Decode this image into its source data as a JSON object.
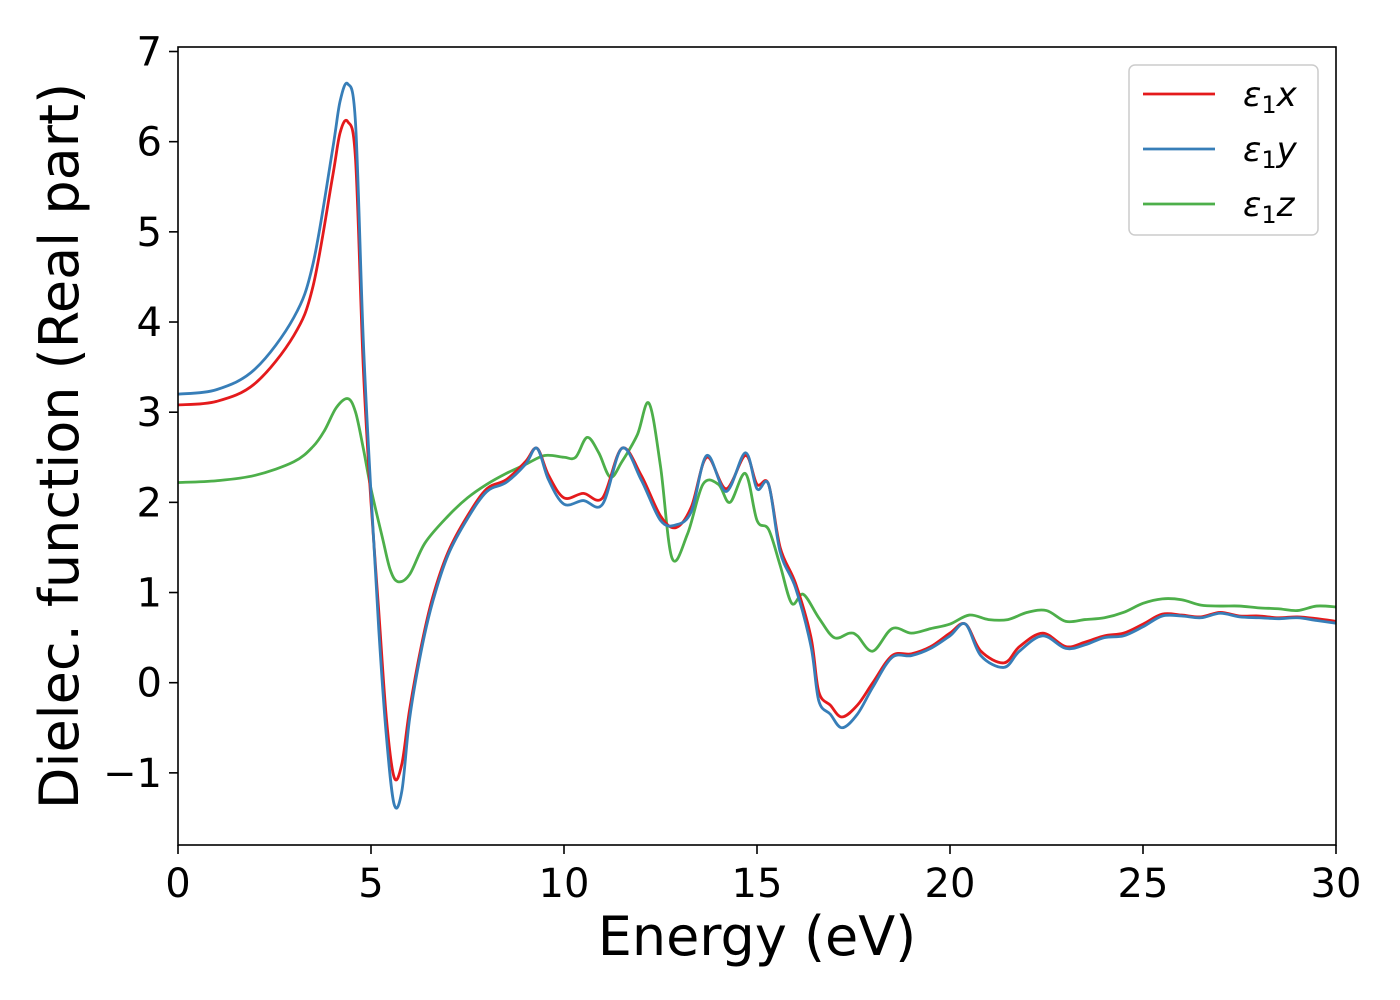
{
  "chart_data": {
    "type": "line",
    "title": "",
    "xlabel": "Energy (eV)",
    "ylabel": "Dielec. function (Real part)",
    "xlim": [
      0,
      30
    ],
    "ylim": [
      -1.8,
      7.05
    ],
    "xticks": [
      0,
      5,
      10,
      15,
      20,
      25,
      30
    ],
    "xtick_labels": [
      "0",
      "5",
      "10",
      "15",
      "20",
      "25",
      "30"
    ],
    "yticks": [
      -1,
      0,
      1,
      2,
      3,
      4,
      5,
      6,
      7
    ],
    "ytick_labels": [
      "−1",
      "0",
      "1",
      "2",
      "3",
      "4",
      "5",
      "6",
      "7"
    ],
    "grid": false,
    "legend_position": "top-right",
    "series": [
      {
        "name": "ε₁x",
        "name_base": "ε",
        "name_sub": "1",
        "name_suffix": "x",
        "color": "#e41a1c",
        "points": [
          [
            0,
            3.08
          ],
          [
            1,
            3.12
          ],
          [
            2,
            3.32
          ],
          [
            3,
            3.85
          ],
          [
            3.5,
            4.4
          ],
          [
            4,
            5.6
          ],
          [
            4.2,
            6.1
          ],
          [
            4.4,
            6.22
          ],
          [
            4.6,
            5.8
          ],
          [
            4.8,
            3.5
          ],
          [
            5.0,
            2.0
          ],
          [
            5.2,
            0.8
          ],
          [
            5.4,
            -0.4
          ],
          [
            5.6,
            -1.05
          ],
          [
            5.8,
            -0.9
          ],
          [
            6.0,
            -0.3
          ],
          [
            6.3,
            0.4
          ],
          [
            6.6,
            0.95
          ],
          [
            7,
            1.45
          ],
          [
            7.5,
            1.85
          ],
          [
            8,
            2.15
          ],
          [
            8.5,
            2.25
          ],
          [
            9,
            2.45
          ],
          [
            9.3,
            2.6
          ],
          [
            9.6,
            2.3
          ],
          [
            10,
            2.05
          ],
          [
            10.5,
            2.1
          ],
          [
            11,
            2.05
          ],
          [
            11.5,
            2.6
          ],
          [
            12,
            2.3
          ],
          [
            12.5,
            1.85
          ],
          [
            12.9,
            1.72
          ],
          [
            13.3,
            1.95
          ],
          [
            13.7,
            2.5
          ],
          [
            14.2,
            2.15
          ],
          [
            14.7,
            2.52
          ],
          [
            15,
            2.2
          ],
          [
            15.3,
            2.2
          ],
          [
            15.6,
            1.5
          ],
          [
            16,
            1.1
          ],
          [
            16.4,
            0.5
          ],
          [
            16.6,
            -0.1
          ],
          [
            16.9,
            -0.25
          ],
          [
            17.2,
            -0.38
          ],
          [
            17.6,
            -0.25
          ],
          [
            18,
            0.0
          ],
          [
            18.5,
            0.3
          ],
          [
            19,
            0.32
          ],
          [
            19.5,
            0.4
          ],
          [
            20,
            0.55
          ],
          [
            20.4,
            0.65
          ],
          [
            20.8,
            0.35
          ],
          [
            21.4,
            0.22
          ],
          [
            21.8,
            0.4
          ],
          [
            22.4,
            0.55
          ],
          [
            23,
            0.4
          ],
          [
            23.5,
            0.45
          ],
          [
            24,
            0.52
          ],
          [
            24.5,
            0.55
          ],
          [
            25,
            0.65
          ],
          [
            25.5,
            0.76
          ],
          [
            26,
            0.75
          ],
          [
            26.5,
            0.73
          ],
          [
            27,
            0.78
          ],
          [
            27.5,
            0.74
          ],
          [
            28,
            0.74
          ],
          [
            28.5,
            0.72
          ],
          [
            29,
            0.73
          ],
          [
            29.5,
            0.71
          ],
          [
            30,
            0.68
          ]
        ]
      },
      {
        "name": "ε₁y",
        "name_base": "ε",
        "name_sub": "1",
        "name_suffix": "y",
        "color": "#377eb8",
        "points": [
          [
            0,
            3.2
          ],
          [
            1,
            3.25
          ],
          [
            2,
            3.48
          ],
          [
            3,
            4.05
          ],
          [
            3.5,
            4.65
          ],
          [
            4,
            5.9
          ],
          [
            4.2,
            6.45
          ],
          [
            4.4,
            6.64
          ],
          [
            4.6,
            6.2
          ],
          [
            4.8,
            3.8
          ],
          [
            5.0,
            2.1
          ],
          [
            5.2,
            0.6
          ],
          [
            5.4,
            -0.6
          ],
          [
            5.6,
            -1.35
          ],
          [
            5.8,
            -1.2
          ],
          [
            6.0,
            -0.4
          ],
          [
            6.3,
            0.35
          ],
          [
            6.6,
            0.9
          ],
          [
            7,
            1.42
          ],
          [
            7.5,
            1.82
          ],
          [
            8,
            2.12
          ],
          [
            8.5,
            2.22
          ],
          [
            9,
            2.42
          ],
          [
            9.3,
            2.6
          ],
          [
            9.6,
            2.25
          ],
          [
            10,
            1.98
          ],
          [
            10.5,
            2.02
          ],
          [
            11,
            1.98
          ],
          [
            11.5,
            2.6
          ],
          [
            12,
            2.25
          ],
          [
            12.5,
            1.8
          ],
          [
            12.9,
            1.75
          ],
          [
            13.3,
            1.9
          ],
          [
            13.7,
            2.52
          ],
          [
            14.2,
            2.12
          ],
          [
            14.7,
            2.55
          ],
          [
            15,
            2.15
          ],
          [
            15.3,
            2.2
          ],
          [
            15.6,
            1.45
          ],
          [
            16,
            1.05
          ],
          [
            16.4,
            0.4
          ],
          [
            16.6,
            -0.2
          ],
          [
            16.9,
            -0.35
          ],
          [
            17.2,
            -0.5
          ],
          [
            17.6,
            -0.35
          ],
          [
            18,
            -0.05
          ],
          [
            18.5,
            0.28
          ],
          [
            19,
            0.3
          ],
          [
            19.5,
            0.38
          ],
          [
            20,
            0.52
          ],
          [
            20.4,
            0.65
          ],
          [
            20.8,
            0.3
          ],
          [
            21.4,
            0.17
          ],
          [
            21.8,
            0.35
          ],
          [
            22.4,
            0.52
          ],
          [
            23,
            0.38
          ],
          [
            23.5,
            0.42
          ],
          [
            24,
            0.5
          ],
          [
            24.5,
            0.52
          ],
          [
            25,
            0.62
          ],
          [
            25.5,
            0.74
          ],
          [
            26,
            0.74
          ],
          [
            26.5,
            0.72
          ],
          [
            27,
            0.77
          ],
          [
            27.5,
            0.73
          ],
          [
            28,
            0.72
          ],
          [
            28.5,
            0.71
          ],
          [
            29,
            0.72
          ],
          [
            29.5,
            0.69
          ],
          [
            30,
            0.66
          ]
        ]
      },
      {
        "name": "ε₁z",
        "name_base": "ε",
        "name_sub": "1",
        "name_suffix": "z",
        "color": "#4daf4a",
        "points": [
          [
            0,
            2.22
          ],
          [
            1,
            2.24
          ],
          [
            2,
            2.3
          ],
          [
            3,
            2.45
          ],
          [
            3.5,
            2.62
          ],
          [
            3.8,
            2.8
          ],
          [
            4.1,
            3.05
          ],
          [
            4.4,
            3.15
          ],
          [
            4.6,
            3.0
          ],
          [
            4.8,
            2.6
          ],
          [
            5.0,
            2.15
          ],
          [
            5.3,
            1.6
          ],
          [
            5.5,
            1.25
          ],
          [
            5.7,
            1.12
          ],
          [
            6.0,
            1.2
          ],
          [
            6.4,
            1.55
          ],
          [
            7,
            1.85
          ],
          [
            7.5,
            2.05
          ],
          [
            8,
            2.2
          ],
          [
            8.5,
            2.32
          ],
          [
            9,
            2.42
          ],
          [
            9.5,
            2.52
          ],
          [
            10,
            2.5
          ],
          [
            10.3,
            2.5
          ],
          [
            10.6,
            2.72
          ],
          [
            10.9,
            2.55
          ],
          [
            11.2,
            2.28
          ],
          [
            11.5,
            2.45
          ],
          [
            11.9,
            2.75
          ],
          [
            12.2,
            3.1
          ],
          [
            12.5,
            2.4
          ],
          [
            12.8,
            1.38
          ],
          [
            13.2,
            1.65
          ],
          [
            13.6,
            2.2
          ],
          [
            14.0,
            2.2
          ],
          [
            14.3,
            2.0
          ],
          [
            14.7,
            2.32
          ],
          [
            15,
            1.8
          ],
          [
            15.3,
            1.7
          ],
          [
            15.6,
            1.3
          ],
          [
            15.9,
            0.88
          ],
          [
            16.2,
            0.98
          ],
          [
            16.6,
            0.72
          ],
          [
            17,
            0.5
          ],
          [
            17.4,
            0.55
          ],
          [
            17.6,
            0.52
          ],
          [
            18,
            0.35
          ],
          [
            18.5,
            0.6
          ],
          [
            19,
            0.55
          ],
          [
            19.5,
            0.6
          ],
          [
            20,
            0.65
          ],
          [
            20.5,
            0.75
          ],
          [
            21,
            0.7
          ],
          [
            21.5,
            0.7
          ],
          [
            22,
            0.78
          ],
          [
            22.5,
            0.8
          ],
          [
            23,
            0.68
          ],
          [
            23.5,
            0.7
          ],
          [
            24,
            0.72
          ],
          [
            24.5,
            0.78
          ],
          [
            25,
            0.88
          ],
          [
            25.5,
            0.93
          ],
          [
            26,
            0.92
          ],
          [
            26.5,
            0.86
          ],
          [
            27,
            0.85
          ],
          [
            27.5,
            0.85
          ],
          [
            28,
            0.83
          ],
          [
            28.5,
            0.82
          ],
          [
            29,
            0.8
          ],
          [
            29.5,
            0.85
          ],
          [
            30,
            0.84
          ]
        ]
      }
    ]
  }
}
